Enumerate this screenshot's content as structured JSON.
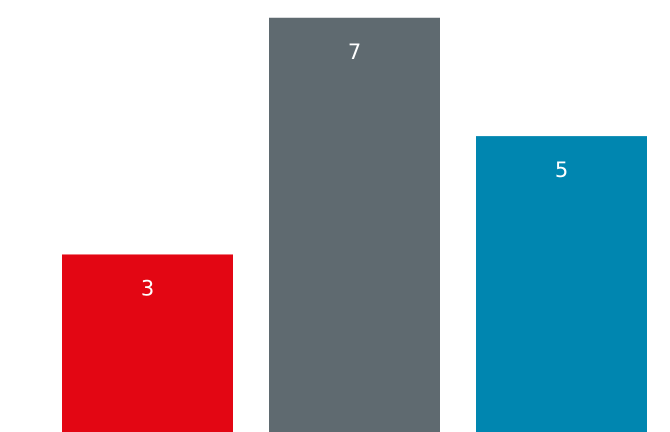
{
  "chart_data": {
    "type": "bar",
    "categories": [
      "",
      "",
      ""
    ],
    "values": [
      3,
      7,
      5
    ],
    "colors": [
      "#e30613",
      "#5f6a70",
      "#0086b0"
    ],
    "title": "",
    "xlabel": "",
    "ylabel": "",
    "ylim": [
      0,
      7.3
    ],
    "grid": false,
    "legend": "none"
  }
}
